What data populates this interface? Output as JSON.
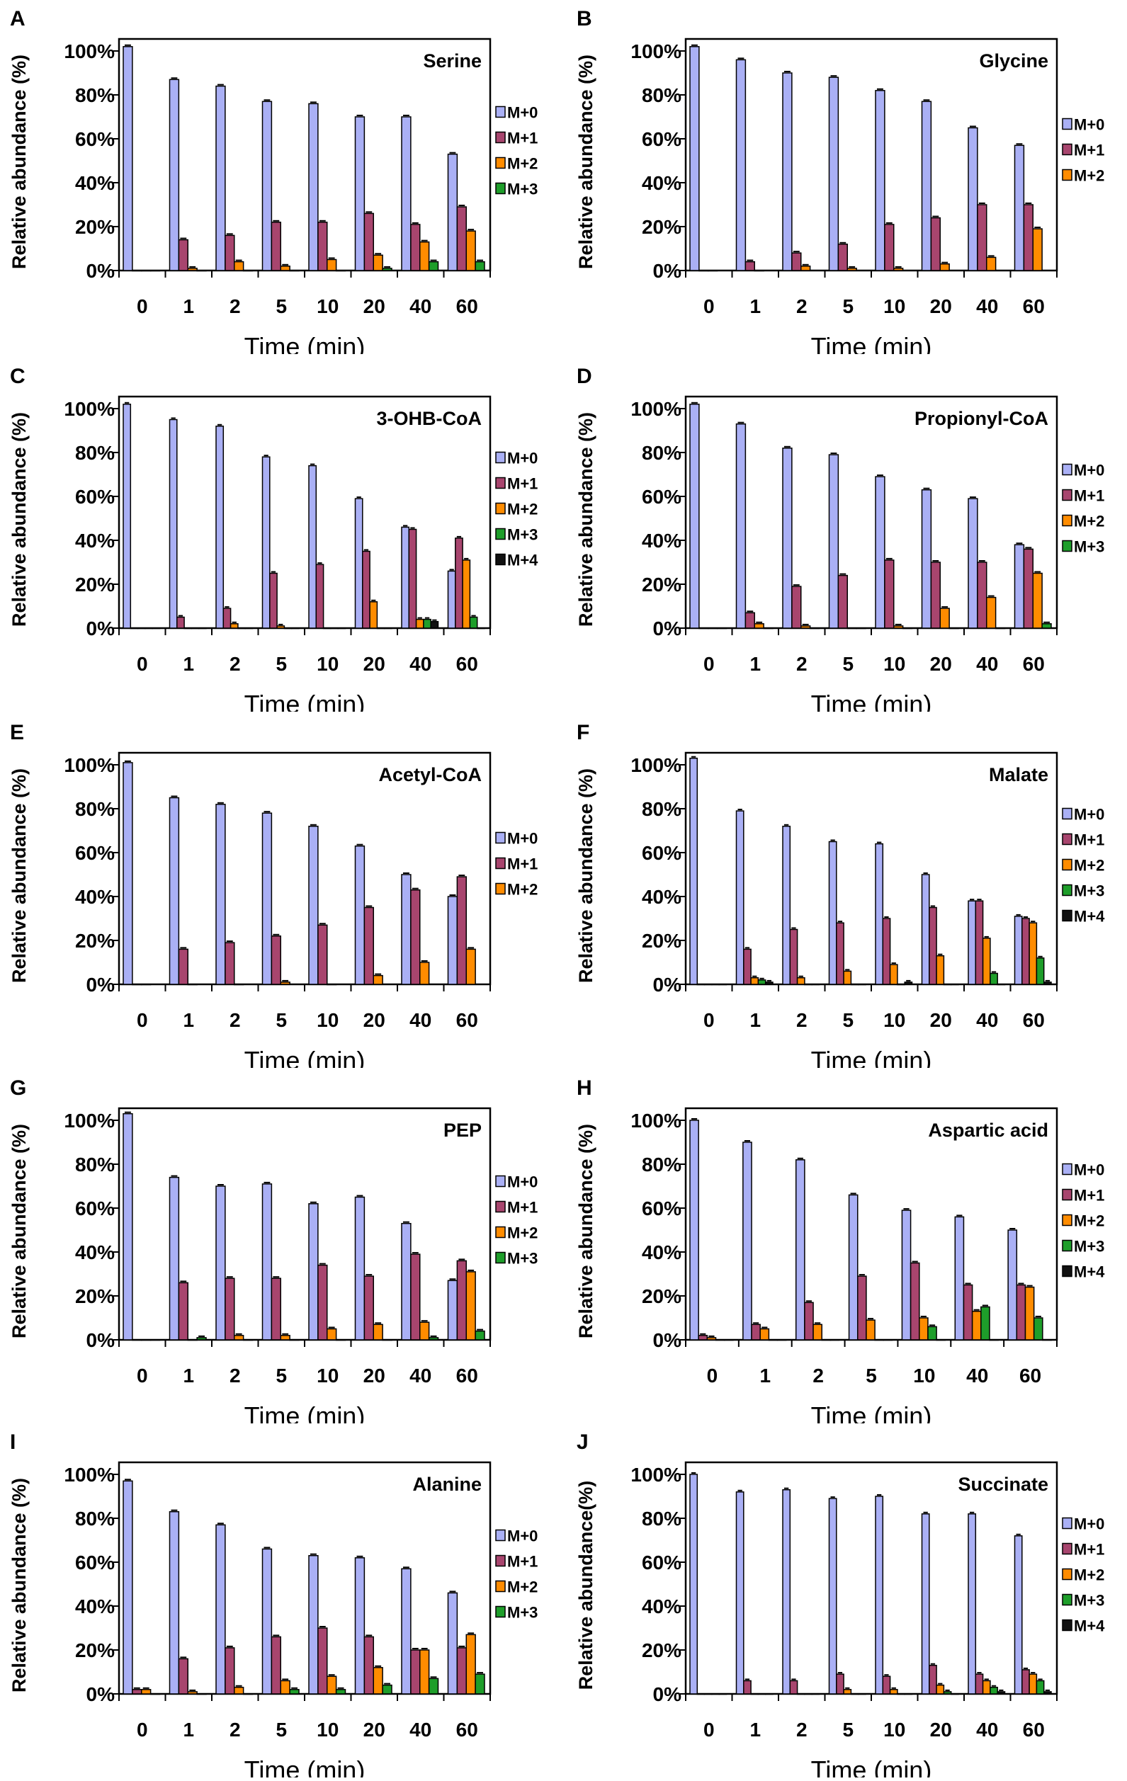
{
  "colors": {
    "M+0": "#aab0f5",
    "M+1": "#a8456e",
    "M+2": "#ff8c00",
    "M+3": "#1e9e2a",
    "M+4": "#111111"
  },
  "chart_data": [
    {
      "panel": "A",
      "type": "bar",
      "title": "Serine",
      "ylabel": "Relative abundance (%)",
      "xlabel": "Time (min)",
      "ylim": [
        0,
        100
      ],
      "yticks": [
        "0%",
        "20%",
        "40%",
        "60%",
        "80%",
        "100%"
      ],
      "categories": [
        "0",
        "1",
        "2",
        "5",
        "10",
        "20",
        "40",
        "60"
      ],
      "series": [
        {
          "name": "M+0",
          "values": [
            102,
            87,
            84,
            77,
            76,
            70,
            70,
            53
          ]
        },
        {
          "name": "M+1",
          "values": [
            0,
            14,
            16,
            22,
            22,
            26,
            21,
            29
          ]
        },
        {
          "name": "M+2",
          "values": [
            0,
            1,
            4,
            2,
            5,
            7,
            13,
            18
          ]
        },
        {
          "name": "M+3",
          "values": [
            0,
            0,
            0,
            0,
            0,
            1,
            4,
            4
          ]
        }
      ]
    },
    {
      "panel": "B",
      "type": "bar",
      "title": "Glycine",
      "ylabel": "Relative abundance (%)",
      "xlabel": "Time (min)",
      "ylim": [
        0,
        100
      ],
      "yticks": [
        "0%",
        "20%",
        "40%",
        "60%",
        "80%",
        "100%"
      ],
      "categories": [
        "0",
        "1",
        "2",
        "5",
        "10",
        "20",
        "40",
        "60"
      ],
      "series": [
        {
          "name": "M+0",
          "values": [
            102,
            96,
            90,
            88,
            82,
            77,
            65,
            57
          ]
        },
        {
          "name": "M+1",
          "values": [
            0,
            4,
            8,
            12,
            21,
            24,
            30,
            30
          ]
        },
        {
          "name": "M+2",
          "values": [
            0,
            0,
            2,
            1,
            1,
            3,
            6,
            19
          ]
        }
      ]
    },
    {
      "panel": "C",
      "type": "bar",
      "title": "3-OHB-CoA",
      "ylabel": "Relative abundance (%)",
      "xlabel": "Time (min)",
      "ylim": [
        0,
        100
      ],
      "yticks": [
        "0%",
        "20%",
        "40%",
        "60%",
        "80%",
        "100%"
      ],
      "categories": [
        "0",
        "1",
        "2",
        "5",
        "10",
        "20",
        "40",
        "60"
      ],
      "series": [
        {
          "name": "M+0",
          "values": [
            102,
            95,
            92,
            78,
            74,
            59,
            46,
            26
          ]
        },
        {
          "name": "M+1",
          "values": [
            0,
            5,
            9,
            25,
            29,
            35,
            45,
            41
          ]
        },
        {
          "name": "M+2",
          "values": [
            0,
            0,
            2,
            1,
            0,
            12,
            4,
            31
          ]
        },
        {
          "name": "M+3",
          "values": [
            0,
            0,
            0,
            0,
            0,
            0,
            4,
            5
          ]
        },
        {
          "name": "M+4",
          "values": [
            0,
            0,
            0,
            0,
            0,
            0,
            3,
            0
          ]
        }
      ]
    },
    {
      "panel": "D",
      "type": "bar",
      "title": "Propionyl-CoA",
      "ylabel": "Relative abundance (%)",
      "xlabel": "Time (min)",
      "ylim": [
        0,
        100
      ],
      "yticks": [
        "0%",
        "20%",
        "40%",
        "60%",
        "80%",
        "100%"
      ],
      "categories": [
        "0",
        "1",
        "2",
        "5",
        "10",
        "20",
        "40",
        "60"
      ],
      "series": [
        {
          "name": "M+0",
          "values": [
            102,
            93,
            82,
            79,
            69,
            63,
            59,
            38
          ]
        },
        {
          "name": "M+1",
          "values": [
            0,
            7,
            19,
            24,
            31,
            30,
            30,
            36
          ]
        },
        {
          "name": "M+2",
          "values": [
            0,
            2,
            1,
            0,
            1,
            9,
            14,
            25
          ]
        },
        {
          "name": "M+3",
          "values": [
            0,
            0,
            0,
            0,
            0,
            0,
            0,
            2
          ]
        }
      ]
    },
    {
      "panel": "E",
      "type": "bar",
      "title": "Acetyl-CoA",
      "ylabel": "Relative abundance (%)",
      "xlabel": "Time (min)",
      "ylim": [
        0,
        100
      ],
      "yticks": [
        "0%",
        "20%",
        "40%",
        "60%",
        "80%",
        "100%"
      ],
      "categories": [
        "0",
        "1",
        "2",
        "5",
        "10",
        "20",
        "40",
        "60"
      ],
      "series": [
        {
          "name": "M+0",
          "values": [
            101,
            85,
            82,
            78,
            72,
            63,
            50,
            40
          ]
        },
        {
          "name": "M+1",
          "values": [
            0,
            16,
            19,
            22,
            27,
            35,
            43,
            49
          ]
        },
        {
          "name": "M+2",
          "values": [
            0,
            0,
            0,
            1,
            0,
            4,
            10,
            16
          ]
        }
      ]
    },
    {
      "panel": "F",
      "type": "bar",
      "title": "Malate",
      "ylabel": "Relative abundance (%)",
      "xlabel": "Time (min)",
      "ylim": [
        0,
        100
      ],
      "yticks": [
        "0%",
        "20%",
        "40%",
        "60%",
        "80%",
        "100%"
      ],
      "categories": [
        "0",
        "1",
        "2",
        "5",
        "10",
        "20",
        "40",
        "60"
      ],
      "series": [
        {
          "name": "M+0",
          "values": [
            103,
            79,
            72,
            65,
            64,
            50,
            38,
            31
          ]
        },
        {
          "name": "M+1",
          "values": [
            0,
            16,
            25,
            28,
            30,
            35,
            38,
            30
          ]
        },
        {
          "name": "M+2",
          "values": [
            0,
            3,
            3,
            6,
            9,
            13,
            21,
            28
          ]
        },
        {
          "name": "M+3",
          "values": [
            0,
            2,
            0,
            0,
            0,
            0,
            5,
            12
          ]
        },
        {
          "name": "M+4",
          "values": [
            0,
            1,
            0,
            0,
            1,
            0,
            0,
            1
          ]
        }
      ]
    },
    {
      "panel": "G",
      "type": "bar",
      "title": "PEP",
      "ylabel": "Relative abundance (%)",
      "xlabel": "Time (min)",
      "ylim": [
        0,
        100
      ],
      "yticks": [
        "0%",
        "20%",
        "40%",
        "60%",
        "80%",
        "100%"
      ],
      "categories": [
        "0",
        "1",
        "2",
        "5",
        "10",
        "20",
        "40",
        "60"
      ],
      "series": [
        {
          "name": "M+0",
          "values": [
            103,
            74,
            70,
            71,
            62,
            65,
            53,
            27
          ]
        },
        {
          "name": "M+1",
          "values": [
            0,
            26,
            28,
            28,
            34,
            29,
            39,
            36
          ]
        },
        {
          "name": "M+2",
          "values": [
            0,
            0,
            2,
            2,
            5,
            7,
            8,
            31
          ]
        },
        {
          "name": "M+3",
          "values": [
            0,
            1,
            0,
            0,
            0,
            0,
            1,
            4
          ]
        }
      ]
    },
    {
      "panel": "H",
      "type": "bar",
      "title": "Aspartic acid",
      "ylabel": "Relative abundance (%)",
      "xlabel": "Time (min)",
      "ylim": [
        0,
        100
      ],
      "yticks": [
        "0%",
        "20%",
        "40%",
        "60%",
        "80%",
        "100%"
      ],
      "categories": [
        "0",
        "1",
        "2",
        "5",
        "10",
        "40",
        "60"
      ],
      "series": [
        {
          "name": "M+0",
          "values": [
            100,
            90,
            82,
            66,
            59,
            56,
            50
          ]
        },
        {
          "name": "M+1",
          "values": [
            2,
            7,
            17,
            29,
            35,
            25,
            25
          ]
        },
        {
          "name": "M+2",
          "values": [
            1,
            5,
            7,
            9,
            10,
            13,
            24
          ]
        },
        {
          "name": "M+3",
          "values": [
            0,
            0,
            0,
            0,
            6,
            15,
            10
          ]
        },
        {
          "name": "M+4",
          "values": [
            0,
            0,
            0,
            0,
            0,
            0,
            0
          ]
        }
      ]
    },
    {
      "panel": "I",
      "type": "bar",
      "title": "Alanine",
      "ylabel": "Relative abundance (%)",
      "xlabel": "Time (min)",
      "ylim": [
        0,
        100
      ],
      "yticks": [
        "0%",
        "20%",
        "40%",
        "60%",
        "80%",
        "100%"
      ],
      "categories": [
        "0",
        "1",
        "2",
        "5",
        "10",
        "20",
        "40",
        "60"
      ],
      "series": [
        {
          "name": "M+0",
          "values": [
            97,
            83,
            77,
            66,
            63,
            62,
            57,
            46
          ]
        },
        {
          "name": "M+1",
          "values": [
            2,
            16,
            21,
            26,
            30,
            26,
            20,
            21
          ]
        },
        {
          "name": "M+2",
          "values": [
            2,
            1,
            3,
            6,
            8,
            12,
            20,
            27
          ]
        },
        {
          "name": "M+3",
          "values": [
            0,
            0,
            0,
            2,
            2,
            4,
            7,
            9
          ]
        }
      ]
    },
    {
      "panel": "J",
      "type": "bar",
      "title": "Succinate",
      "ylabel": "Relative abundance(%)",
      "xlabel": "Time (min)",
      "ylim": [
        0,
        100
      ],
      "yticks": [
        "0%",
        "20%",
        "40%",
        "60%",
        "80%",
        "100%"
      ],
      "categories": [
        "0",
        "1",
        "2",
        "5",
        "10",
        "20",
        "40",
        "60"
      ],
      "series": [
        {
          "name": "M+0",
          "values": [
            100,
            92,
            93,
            89,
            90,
            82,
            82,
            72
          ]
        },
        {
          "name": "M+1",
          "values": [
            0,
            6,
            6,
            9,
            8,
            13,
            9,
            11
          ]
        },
        {
          "name": "M+2",
          "values": [
            0,
            0,
            0,
            2,
            2,
            4,
            6,
            9
          ]
        },
        {
          "name": "M+3",
          "values": [
            0,
            0,
            0,
            0,
            0,
            1,
            3,
            6
          ]
        },
        {
          "name": "M+4",
          "values": [
            0,
            0,
            0,
            0,
            0,
            0,
            1,
            1
          ]
        }
      ]
    }
  ]
}
